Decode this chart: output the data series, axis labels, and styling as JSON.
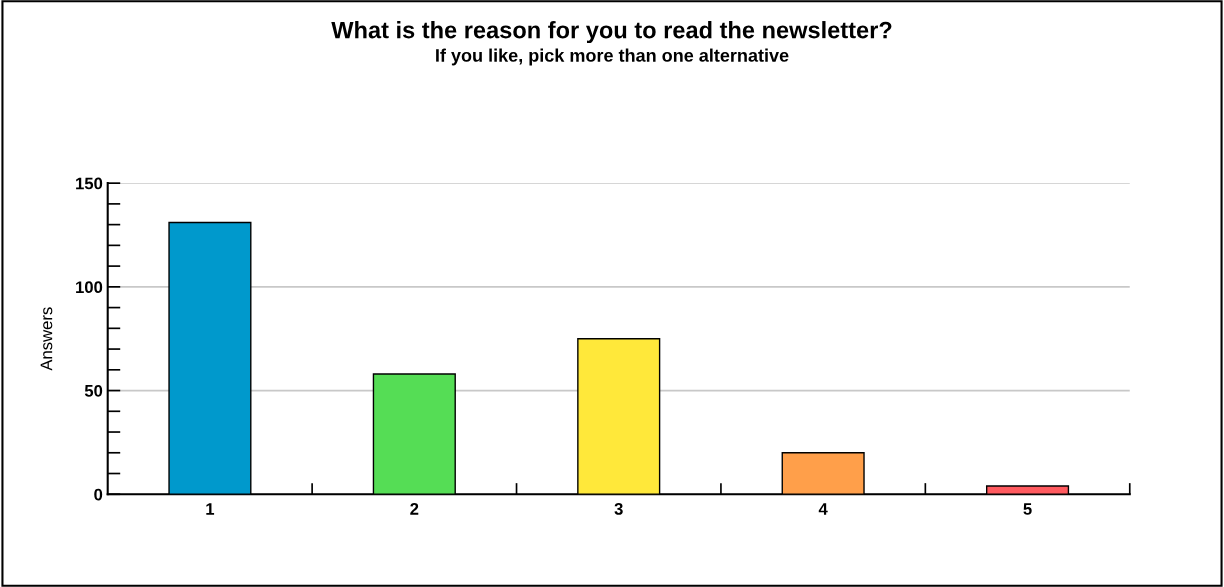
{
  "chart_data": {
    "type": "bar",
    "title": "What is the reason for you to read the newsletter?",
    "subtitle": "If you like, pick more than one alternative",
    "ylabel": "Answers",
    "categories": [
      "1",
      "2",
      "3",
      "4",
      "5"
    ],
    "values": [
      131,
      58,
      75,
      20,
      4
    ],
    "colors": [
      "#0099cc",
      "#55dd55",
      "#ffe83a",
      "#ff9f4a",
      "#ff5a5f"
    ],
    "ylim": [
      0,
      150
    ],
    "yticks": [
      0,
      {
        "value": 10,
        "label": null
      },
      {
        "value": 20,
        "label": null
      },
      {
        "value": 30,
        "label": null
      },
      {
        "value": 40,
        "label": null
      },
      50,
      {
        "value": 60,
        "label": null
      },
      {
        "value": 70,
        "label": null
      },
      {
        "value": 80,
        "label": null
      },
      {
        "value": 90,
        "label": null
      },
      100,
      {
        "value": 110,
        "label": null
      },
      {
        "value": 120,
        "label": null
      },
      {
        "value": 130,
        "label": null
      },
      {
        "value": 140,
        "label": null
      },
      150
    ],
    "grid": "y",
    "legend": false
  }
}
